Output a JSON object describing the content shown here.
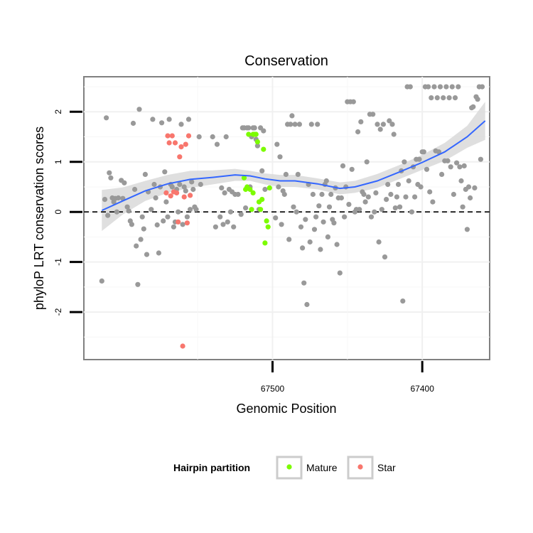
{
  "chart_data": {
    "type": "scatter",
    "title": "Conservation",
    "xlabel": "Genomic Position",
    "ylabel": "phyloP LRT conservation scores",
    "x_reversed": true,
    "xlim": [
      67626,
      67355
    ],
    "ylim": [
      -2.95,
      2.7
    ],
    "x_ticks": [
      67500,
      67400
    ],
    "y_ticks": [
      -2,
      -1,
      0,
      1,
      2
    ],
    "grid": true,
    "reference_line": {
      "y": 0,
      "style": "dashed"
    },
    "legend": {
      "title": "Hairpin partition",
      "position": "bottom",
      "entries": [
        {
          "label": "Mature",
          "color": "#7cfc00"
        },
        {
          "label": "Star",
          "color": "#f8766d"
        }
      ]
    },
    "colors": {
      "other": "#999999",
      "mature": "#7cfc00",
      "star": "#f8766d",
      "smooth": "#3366ff",
      "band": "#d9d9d9"
    },
    "series": [
      {
        "group": "other",
        "points": [
          [
            67614,
            -1.38
          ],
          [
            67612,
            0.25
          ],
          [
            67611,
            1.88
          ],
          [
            67610,
            -0.07
          ],
          [
            67609,
            0.78
          ],
          [
            67608,
            0.68
          ],
          [
            67607,
            0.28
          ],
          [
            67606,
            0.2
          ],
          [
            67605,
            0.27
          ],
          [
            67604,
            0.0
          ],
          [
            67603,
            0.28
          ],
          [
            67601,
            0.63
          ],
          [
            67600,
            0.27
          ],
          [
            67599,
            0.58
          ],
          [
            67597,
            0.1
          ],
          [
            67596,
            0.02
          ],
          [
            67595,
            -0.18
          ],
          [
            67594,
            -0.25
          ],
          [
            67593,
            1.77
          ],
          [
            67592,
            0.45
          ],
          [
            67591,
            -0.68
          ],
          [
            67590,
            -1.45
          ],
          [
            67589,
            2.05
          ],
          [
            67588,
            -0.55
          ],
          [
            67587,
            -0.1
          ],
          [
            67586,
            -0.34
          ],
          [
            67585,
            0.75
          ],
          [
            67584,
            -0.85
          ],
          [
            67583,
            0.4
          ],
          [
            67581,
            0.05
          ],
          [
            67580,
            1.85
          ],
          [
            67579,
            0.55
          ],
          [
            67578,
            0.28
          ],
          [
            67577,
            -0.26
          ],
          [
            67576,
            -0.82
          ],
          [
            67575,
            0.5
          ],
          [
            67574,
            1.78
          ],
          [
            67573,
            -0.18
          ],
          [
            67572,
            0.8
          ],
          [
            67571,
            0.2
          ],
          [
            67570,
            -0.1
          ],
          [
            67569,
            1.85
          ],
          [
            67568,
            0.55
          ],
          [
            67567,
            0.5
          ],
          [
            67566,
            -0.3
          ],
          [
            67565,
            -0.2
          ],
          [
            67564,
            0.45
          ],
          [
            67563,
            0.0
          ],
          [
            67562,
            0.55
          ],
          [
            67561,
            1.75
          ],
          [
            67560,
            -0.25
          ],
          [
            67559,
            0.5
          ],
          [
            67558,
            0.42
          ],
          [
            67557,
            -0.1
          ],
          [
            67556,
            1.85
          ],
          [
            67555,
            0.05
          ],
          [
            67554,
            0.6
          ],
          [
            67553,
            0.45
          ],
          [
            67552,
            0.1
          ],
          [
            67551,
            0.05
          ],
          [
            67549,
            1.5
          ],
          [
            67548,
            0.55
          ],
          [
            67540,
            1.5
          ],
          [
            67538,
            -0.3
          ],
          [
            67537,
            1.35
          ],
          [
            67535,
            -0.1
          ],
          [
            67534,
            0.48
          ],
          [
            67533,
            -0.25
          ],
          [
            67532,
            0.38
          ],
          [
            67531,
            1.5
          ],
          [
            67530,
            -0.2
          ],
          [
            67529,
            0.45
          ],
          [
            67528,
            0.0
          ],
          [
            67527,
            0.4
          ],
          [
            67526,
            -0.3
          ],
          [
            67525,
            0.35
          ],
          [
            67523,
            0.35
          ],
          [
            67521,
            -0.05
          ],
          [
            67520,
            1.68
          ],
          [
            67519,
            1.68
          ],
          [
            67518,
            0.08
          ],
          [
            67517,
            1.68
          ],
          [
            67516,
            1.68
          ],
          [
            67515,
            0.5
          ],
          [
            67514,
            1.5
          ],
          [
            67513,
            1.68
          ],
          [
            67512,
            1.68
          ],
          [
            67511,
            1.45
          ],
          [
            67510,
            1.32
          ],
          [
            67509,
            0.05
          ],
          [
            67508,
            1.68
          ],
          [
            67507,
            0.82
          ],
          [
            67506,
            1.62
          ],
          [
            67505,
            0.45
          ],
          [
            67498,
            -0.12
          ],
          [
            67497,
            1.35
          ],
          [
            67496,
            0.5
          ],
          [
            67495,
            1.1
          ],
          [
            67494,
            -0.25
          ],
          [
            67493,
            0.42
          ],
          [
            67492,
            0.35
          ],
          [
            67491,
            0.75
          ],
          [
            67490,
            1.75
          ],
          [
            67489,
            -0.55
          ],
          [
            67488,
            1.75
          ],
          [
            67487,
            1.92
          ],
          [
            67486,
            0.1
          ],
          [
            67485,
            1.75
          ],
          [
            67484,
            0.0
          ],
          [
            67483,
            0.75
          ],
          [
            67482,
            1.75
          ],
          [
            67481,
            -0.3
          ],
          [
            67480,
            -0.72
          ],
          [
            67479,
            -1.42
          ],
          [
            67478,
            -0.15
          ],
          [
            67477,
            -1.85
          ],
          [
            67476,
            0.55
          ],
          [
            67475,
            -0.6
          ],
          [
            67474,
            1.75
          ],
          [
            67473,
            0.35
          ],
          [
            67472,
            -0.35
          ],
          [
            67471,
            -0.1
          ],
          [
            67470,
            1.75
          ],
          [
            67469,
            0.12
          ],
          [
            67468,
            -0.75
          ],
          [
            67467,
            0.35
          ],
          [
            67466,
            -0.2
          ],
          [
            67465,
            0.55
          ],
          [
            67464,
            0.62
          ],
          [
            67463,
            -0.5
          ],
          [
            67462,
            0.1
          ],
          [
            67461,
            0.35
          ],
          [
            67460,
            -0.15
          ],
          [
            67459,
            -0.22
          ],
          [
            67458,
            0.48
          ],
          [
            67457,
            -0.65
          ],
          [
            67456,
            0.28
          ],
          [
            67455,
            -1.22
          ],
          [
            67454,
            0.28
          ],
          [
            67453,
            0.92
          ],
          [
            67452,
            -0.1
          ],
          [
            67451,
            0.5
          ],
          [
            67450,
            2.2
          ],
          [
            67449,
            0.15
          ],
          [
            67448,
            2.2
          ],
          [
            67447,
            0.85
          ],
          [
            67446,
            2.2
          ],
          [
            67445,
            0.0
          ],
          [
            67444,
            0.05
          ],
          [
            67443,
            1.6
          ],
          [
            67442,
            0.05
          ],
          [
            67441,
            1.8
          ],
          [
            67440,
            0.4
          ],
          [
            67439,
            0.35
          ],
          [
            67438,
            0.2
          ],
          [
            67437,
            1.0
          ],
          [
            67436,
            0.3
          ],
          [
            67435,
            1.95
          ],
          [
            67434,
            -0.1
          ],
          [
            67433,
            1.95
          ],
          [
            67432,
            0.0
          ],
          [
            67431,
            0.38
          ],
          [
            67430,
            1.75
          ],
          [
            67429,
            -0.6
          ],
          [
            67428,
            1.65
          ],
          [
            67427,
            0.05
          ],
          [
            67426,
            1.75
          ],
          [
            67425,
            -0.9
          ],
          [
            67424,
            0.25
          ],
          [
            67423,
            0.55
          ],
          [
            67422,
            1.82
          ],
          [
            67421,
            0.35
          ],
          [
            67420,
            1.75
          ],
          [
            67419,
            1.55
          ],
          [
            67418,
            0.08
          ],
          [
            67417,
            0.3
          ],
          [
            67416,
            0.55
          ],
          [
            67415,
            0.1
          ],
          [
            67414,
            0.82
          ],
          [
            67413,
            -1.78
          ],
          [
            67412,
            1.0
          ],
          [
            67411,
            0.3
          ],
          [
            67410,
            2.5
          ],
          [
            67409,
            0.62
          ],
          [
            67408,
            2.5
          ],
          [
            67407,
            0.0
          ],
          [
            67406,
            0.9
          ],
          [
            67405,
            0.3
          ],
          [
            67404,
            1.05
          ],
          [
            67403,
            0.55
          ],
          [
            67402,
            1.05
          ],
          [
            67401,
            0.5
          ],
          [
            67400,
            1.2
          ],
          [
            67399,
            1.2
          ],
          [
            67398,
            2.5
          ],
          [
            67397,
            0.85
          ],
          [
            67396,
            2.5
          ],
          [
            67395,
            0.4
          ],
          [
            67394,
            2.28
          ],
          [
            67393,
            0.2
          ],
          [
            67392,
            2.5
          ],
          [
            67391,
            1.22
          ],
          [
            67390,
            2.28
          ],
          [
            67389,
            1.2
          ],
          [
            67388,
            2.5
          ],
          [
            67387,
            0.75
          ],
          [
            67386,
            2.28
          ],
          [
            67385,
            1.02
          ],
          [
            67384,
            2.5
          ],
          [
            67383,
            1.02
          ],
          [
            67382,
            2.28
          ],
          [
            67381,
            0.9
          ],
          [
            67380,
            2.5
          ],
          [
            67379,
            0.35
          ],
          [
            67378,
            2.28
          ],
          [
            67377,
            0.98
          ],
          [
            67376,
            2.5
          ],
          [
            67375,
            0.9
          ],
          [
            67374,
            0.62
          ],
          [
            67373,
            0.1
          ],
          [
            67372,
            0.92
          ],
          [
            67371,
            0.45
          ],
          [
            67370,
            -0.35
          ],
          [
            67369,
            0.5
          ],
          [
            67368,
            0.28
          ],
          [
            67367,
            2.08
          ],
          [
            67366,
            2.1
          ],
          [
            67365,
            0.48
          ],
          [
            67364,
            2.3
          ],
          [
            67363,
            2.25
          ],
          [
            67362,
            2.5
          ],
          [
            67361,
            1.05
          ],
          [
            67360,
            2.5
          ]
        ]
      },
      {
        "group": "mature",
        "name": "Mature",
        "points": [
          [
            67519,
            0.68
          ],
          [
            67518,
            0.45
          ],
          [
            67517,
            0.5
          ],
          [
            67516,
            1.55
          ],
          [
            67515,
            0.45
          ],
          [
            67514,
            0.05
          ],
          [
            67513,
            1.55
          ],
          [
            67512,
            1.55
          ],
          [
            67511,
            1.55
          ],
          [
            67510,
            1.4
          ],
          [
            67509,
            0.2
          ],
          [
            67508,
            0.05
          ],
          [
            67507,
            0.25
          ],
          [
            67506,
            1.25
          ],
          [
            67505,
            -0.62
          ],
          [
            67504,
            -0.18
          ],
          [
            67503,
            -0.3
          ],
          [
            67502,
            0.48
          ],
          [
            67513,
            0.38
          ]
        ]
      },
      {
        "group": "star",
        "name": "Star",
        "points": [
          [
            67571,
            0.38
          ],
          [
            67570,
            1.52
          ],
          [
            67569,
            1.38
          ],
          [
            67568,
            0.32
          ],
          [
            67567,
            1.52
          ],
          [
            67566,
            0.4
          ],
          [
            67565,
            1.38
          ],
          [
            67564,
            0.38
          ],
          [
            67563,
            -0.2
          ],
          [
            67562,
            1.1
          ],
          [
            67561,
            1.3
          ],
          [
            67560,
            -2.68
          ],
          [
            67559,
            0.3
          ],
          [
            67558,
            1.35
          ],
          [
            67557,
            -0.22
          ],
          [
            67556,
            1.52
          ],
          [
            67555,
            0.33
          ]
        ]
      }
    ],
    "smooth": {
      "method": "loess",
      "x": [
        67614,
        67600,
        67585,
        67570,
        67555,
        67540,
        67525,
        67515,
        67505,
        67495,
        67485,
        67470,
        67455,
        67445,
        67430,
        67415,
        67400,
        67385,
        67370,
        67358
      ],
      "y": [
        0.03,
        0.22,
        0.42,
        0.56,
        0.65,
        0.69,
        0.74,
        0.72,
        0.66,
        0.62,
        0.62,
        0.56,
        0.47,
        0.5,
        0.62,
        0.8,
        0.99,
        1.2,
        1.5,
        1.82
      ],
      "band_lower": [
        -0.38,
        -0.05,
        0.22,
        0.38,
        0.48,
        0.55,
        0.62,
        0.62,
        0.55,
        0.5,
        0.5,
        0.45,
        0.35,
        0.38,
        0.48,
        0.66,
        0.84,
        1.02,
        1.28,
        1.44
      ],
      "band_upper": [
        0.44,
        0.49,
        0.62,
        0.74,
        0.82,
        0.83,
        0.86,
        0.82,
        0.77,
        0.74,
        0.74,
        0.67,
        0.59,
        0.62,
        0.76,
        0.94,
        1.14,
        1.38,
        1.72,
        2.2
      ]
    }
  }
}
